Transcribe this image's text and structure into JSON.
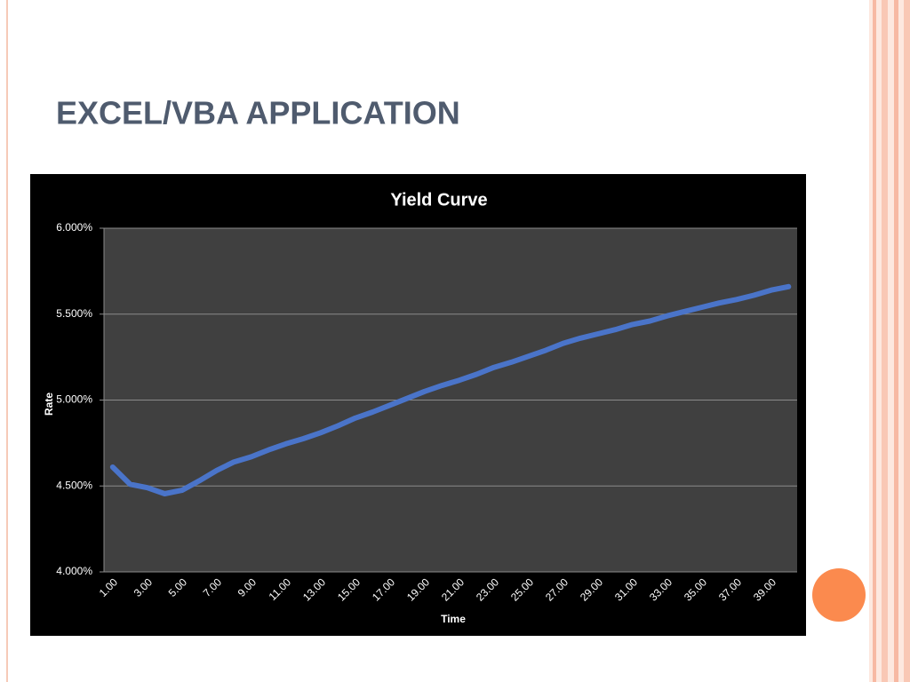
{
  "slide_title": "EXCEL/VBA APPLICATION",
  "chart_data": {
    "type": "line",
    "title": "Yield Curve",
    "x_label": "Time",
    "y_label": "Rate",
    "categories": [
      "1.00",
      null,
      "3.00",
      null,
      "5.00",
      null,
      "7.00",
      null,
      "9.00",
      null,
      "11.00",
      null,
      "13.00",
      null,
      "15.00",
      null,
      "17.00",
      null,
      "19.00",
      null,
      "21.00",
      null,
      "23.00",
      null,
      "25.00",
      null,
      "27.00",
      null,
      "29.00",
      null,
      "31.00",
      null,
      "33.00",
      null,
      "35.00",
      null,
      "37.00",
      null,
      "39.00",
      null
    ],
    "values": [
      4.61,
      4.51,
      4.49,
      4.455,
      4.475,
      4.53,
      4.59,
      4.64,
      4.67,
      4.71,
      4.745,
      4.775,
      4.81,
      4.85,
      4.895,
      4.93,
      4.97,
      5.01,
      5.05,
      5.085,
      5.115,
      5.15,
      5.19,
      5.22,
      5.255,
      5.29,
      5.33,
      5.36,
      5.385,
      5.41,
      5.44,
      5.46,
      5.49,
      5.515,
      5.54,
      5.565,
      5.585,
      5.61,
      5.64,
      5.66
    ],
    "color": "#4a74c9",
    "ylim": [
      4,
      6
    ],
    "yticks": [
      {
        "value": 4,
        "label": "4.000%"
      },
      {
        "value": 4.5,
        "label": "4.500%"
      },
      {
        "value": 5,
        "label": "5.000%"
      },
      {
        "value": 5.5,
        "label": "5.500%"
      },
      {
        "value": 6,
        "label": "6.000%"
      }
    ],
    "grid": true
  }
}
